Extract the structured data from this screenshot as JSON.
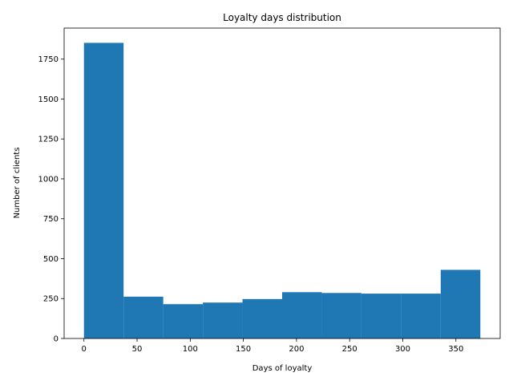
{
  "chart_data": {
    "type": "bar",
    "title": "Loyalty days distribution",
    "xlabel": "Days of loyalty",
    "ylabel": "Number of clients",
    "bins": [
      {
        "x0": 0,
        "x1": 37.3,
        "value": 1852
      },
      {
        "x0": 37.3,
        "x1": 74.6,
        "value": 262
      },
      {
        "x0": 74.6,
        "x1": 111.9,
        "value": 215
      },
      {
        "x0": 111.9,
        "x1": 149.2,
        "value": 225
      },
      {
        "x0": 149.2,
        "x1": 186.5,
        "value": 247
      },
      {
        "x0": 186.5,
        "x1": 223.8,
        "value": 290
      },
      {
        "x0": 223.8,
        "x1": 261.1,
        "value": 285
      },
      {
        "x0": 261.1,
        "x1": 298.4,
        "value": 281
      },
      {
        "x0": 298.4,
        "x1": 335.7,
        "value": 281
      },
      {
        "x0": 335.7,
        "x1": 373,
        "value": 430
      }
    ],
    "xlim": [
      -18.65,
      391.65
    ],
    "ylim": [
      0,
      1944.6
    ],
    "xticks": [
      0,
      50,
      100,
      150,
      200,
      250,
      300,
      350
    ],
    "yticks": [
      0,
      250,
      500,
      750,
      1000,
      1250,
      1500,
      1750
    ],
    "bar_color": "#1f77b4",
    "grid": false
  }
}
